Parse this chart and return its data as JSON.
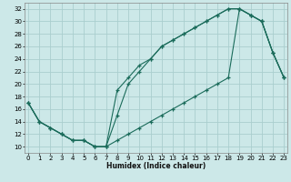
{
  "bg_color": "#cce8e8",
  "grid_color": "#aacece",
  "line_color": "#1a6b5a",
  "xlabel": "Humidex (Indice chaleur)",
  "curve_a": {
    "x": [
      0,
      1,
      2,
      3,
      4,
      5,
      6,
      7,
      8,
      9,
      10,
      11,
      12,
      13,
      14,
      15,
      16,
      17,
      18,
      19,
      20,
      21,
      22,
      23
    ],
    "y": [
      17,
      14,
      13,
      12,
      11,
      11,
      10,
      10,
      19,
      21,
      23,
      24,
      26,
      27,
      28,
      29,
      30,
      31,
      32,
      32,
      31,
      30,
      25,
      21
    ]
  },
  "curve_b": {
    "x": [
      0,
      1,
      2,
      3,
      4,
      5,
      6,
      7,
      8,
      9,
      10,
      11,
      12,
      13,
      14,
      15,
      16,
      17,
      18,
      19,
      20,
      21,
      22,
      23
    ],
    "y": [
      17,
      14,
      13,
      12,
      11,
      11,
      10,
      10,
      15,
      20,
      22,
      24,
      26,
      27,
      28,
      29,
      30,
      31,
      32,
      32,
      31,
      30,
      25,
      21
    ]
  },
  "curve_c": {
    "x": [
      0,
      1,
      2,
      3,
      4,
      5,
      6,
      7,
      8,
      9,
      10,
      11,
      12,
      13,
      14,
      15,
      16,
      17,
      18,
      19,
      20,
      21,
      22,
      23
    ],
    "y": [
      17,
      14,
      13,
      12,
      11,
      11,
      10,
      10,
      11,
      12,
      13,
      14,
      15,
      16,
      17,
      18,
      19,
      20,
      21,
      32,
      31,
      30,
      25,
      21
    ]
  },
  "xlim": [
    -0.3,
    23.3
  ],
  "ylim": [
    9,
    33
  ],
  "yticks": [
    10,
    12,
    14,
    16,
    18,
    20,
    22,
    24,
    26,
    28,
    30,
    32
  ],
  "xticks": [
    0,
    1,
    2,
    3,
    4,
    5,
    6,
    7,
    8,
    9,
    10,
    11,
    12,
    13,
    14,
    15,
    16,
    17,
    18,
    19,
    20,
    21,
    22,
    23
  ]
}
